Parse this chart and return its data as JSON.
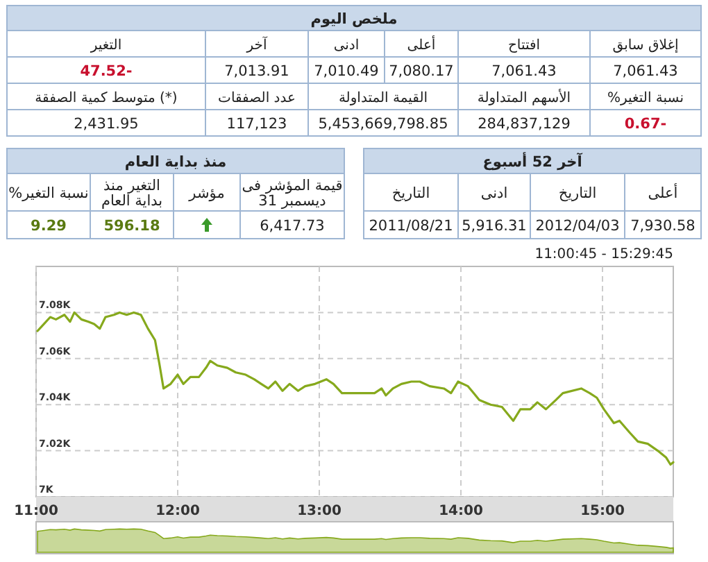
{
  "chart_data": [
    {
      "type": "other",
      "title": "ملخص اليوم",
      "annotations": [
        "إغلاق سابق",
        "افتتاح",
        "أعلى",
        "ادنى",
        "آخر",
        "التغير",
        "7,061.43",
        "7,061.43",
        "7,080.17",
        "7,010.49",
        "7,013.91",
        "47.52-",
        "%نسبة التغير",
        "الأسهم المتداولة",
        "القيمة المتداولة",
        "عدد الصفقات",
        "متوسط كمية الصفقة (*)",
        "0.67-",
        "284,837,129",
        "5,453,669,798.85",
        "117,123",
        "2,431.95"
      ]
    },
    {
      "type": "other",
      "title": "آخر 52 أسبوع",
      "annotations": [
        "أعلى",
        "التاريخ",
        "ادنى",
        "التاريخ",
        "7,930.58",
        "2012/04/03",
        "5,916.31",
        "2011/08/21"
      ]
    },
    {
      "type": "other",
      "title": "منذ بداية العام",
      "annotations": [
        "قيمة المؤشر فى 31 ديسمبر",
        "مؤشر",
        "التغير منذ بداية العام",
        "%نسبة التغير",
        "6,417.73",
        "596.18",
        "9.29"
      ]
    },
    {
      "type": "line",
      "annotations": [
        "11:00:45 - 15:29:45"
      ],
      "xlim": [
        11,
        15.5
      ],
      "ylim": [
        7000,
        7100
      ],
      "xticks": [
        {
          "value": 11,
          "label": "11:00"
        },
        {
          "value": 12,
          "label": "12:00"
        },
        {
          "value": 13,
          "label": "13:00"
        },
        {
          "value": 14,
          "label": "14:00"
        },
        {
          "value": 15,
          "label": "15:00"
        }
      ],
      "yticks": [
        {
          "value": 7000,
          "label": "7K"
        },
        {
          "value": 7020,
          "label": "7.02K"
        },
        {
          "value": 7040,
          "label": "7.04K"
        },
        {
          "value": 7060,
          "label": "7.06K"
        },
        {
          "value": 7080,
          "label": "7.08K"
        }
      ],
      "grid": true,
      "x": [
        11.01,
        11.04,
        11.1,
        11.14,
        11.2,
        11.24,
        11.27,
        11.32,
        11.37,
        11.41,
        11.45,
        11.49,
        11.55,
        11.59,
        11.64,
        11.69,
        11.74,
        11.79,
        11.84,
        11.87,
        11.9,
        11.95,
        12.0,
        12.04,
        12.09,
        12.15,
        12.2,
        12.23,
        12.28,
        12.35,
        12.41,
        12.48,
        12.54,
        12.59,
        12.64,
        12.69,
        12.74,
        12.79,
        12.85,
        12.9,
        12.97,
        13.05,
        13.1,
        13.16,
        13.23,
        13.31,
        13.39,
        13.44,
        13.47,
        13.52,
        13.58,
        13.65,
        13.71,
        13.78,
        13.88,
        13.93,
        13.98,
        14.05,
        14.09,
        14.13,
        14.21,
        14.29,
        14.37,
        14.42,
        14.49,
        14.54,
        14.6,
        14.67,
        14.72,
        14.85,
        14.91,
        14.96,
        15.01,
        15.08,
        15.12,
        15.19,
        15.25,
        15.32,
        15.39,
        15.45,
        15.48,
        15.5
      ],
      "series": [
        {
          "color": "#86a91c",
          "values": [
            7072,
            7074,
            7078,
            7077,
            7079,
            7076,
            7080,
            7077,
            7076,
            7075,
            7073,
            7078,
            7079,
            7080,
            7079,
            7080,
            7079,
            7073,
            7068,
            7058,
            7047,
            7049,
            7053,
            7049,
            7052,
            7052,
            7056,
            7059,
            7057,
            7056,
            7054,
            7053,
            7051,
            7049,
            7047,
            7050,
            7046,
            7049,
            7046,
            7048,
            7049,
            7051,
            7049,
            7045,
            7045,
            7045,
            7045,
            7047,
            7044,
            7047,
            7049,
            7050,
            7050,
            7048,
            7047,
            7045,
            7050,
            7048,
            7045,
            7042,
            7040,
            7039,
            7033,
            7038,
            7038,
            7041,
            7038,
            7042,
            7045,
            7047,
            7045,
            7043,
            7038,
            7032,
            7033,
            7028,
            7024,
            7023,
            7020,
            7017,
            7014,
            7015
          ]
        }
      ]
    }
  ]
}
